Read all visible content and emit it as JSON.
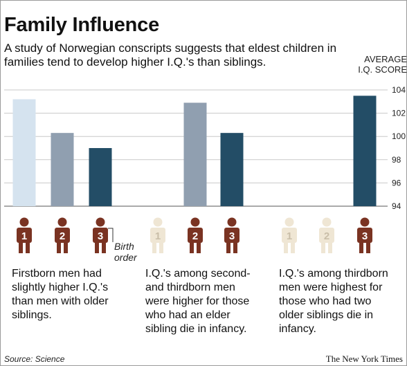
{
  "title": "Family Influence",
  "subtitle": "A study of Norwegian conscripts suggests that eldest children in families tend to develop higher I.Q.'s than siblings.",
  "axis_title": "AVERAGE\nI.Q. SCORE",
  "birth_order_label": "Birth order",
  "captions": [
    "Firstborn men had\nslightly higher I.Q.'s\nthan men with older\nsiblings.",
    "I.Q.'s among second-\nand thirdborn men\nwere higher for those\nwho had an elder\nsibling die in infancy.",
    "I.Q.'s among thirdborn\nmen were highest for\nthose who had two\nolder siblings die in\ninfancy."
  ],
  "source": "Source: Science",
  "credit": "The New York Times",
  "colors": {
    "bar_first": "#d5e3ef",
    "bar_second": "#909fb0",
    "bar_third": "#234d66",
    "figure_alive": "#7a3322",
    "figure_deceased": "#efe6d4",
    "figure_deceased_text": "#c9bea8"
  },
  "chart_data": {
    "type": "bar",
    "ylabel": "AVERAGE I.Q. SCORE",
    "ylim": [
      94,
      104
    ],
    "yticks": [
      94,
      96,
      98,
      100,
      102,
      104
    ],
    "grid": true,
    "panels": [
      {
        "bars": [
          {
            "birth_order": "1",
            "value": 103.2,
            "color": "bar_first"
          },
          {
            "birth_order": "2",
            "value": 100.3,
            "color": "bar_second"
          },
          {
            "birth_order": "3",
            "value": 99.0,
            "color": "bar_third"
          }
        ],
        "figures": [
          {
            "label": "1",
            "deceased": false
          },
          {
            "label": "2",
            "deceased": false
          },
          {
            "label": "3",
            "deceased": false
          }
        ]
      },
      {
        "bars": [
          {
            "birth_order": "2",
            "value": 102.9,
            "color": "bar_second"
          },
          {
            "birth_order": "3",
            "value": 100.3,
            "color": "bar_third"
          }
        ],
        "figures": [
          {
            "label": "1",
            "deceased": true
          },
          {
            "label": "2",
            "deceased": false
          },
          {
            "label": "3",
            "deceased": false
          }
        ]
      },
      {
        "bars": [
          {
            "birth_order": "3",
            "value": 103.5,
            "color": "bar_third"
          }
        ],
        "figures": [
          {
            "label": "1",
            "deceased": true
          },
          {
            "label": "2",
            "deceased": true
          },
          {
            "label": "3",
            "deceased": false
          }
        ]
      }
    ]
  }
}
